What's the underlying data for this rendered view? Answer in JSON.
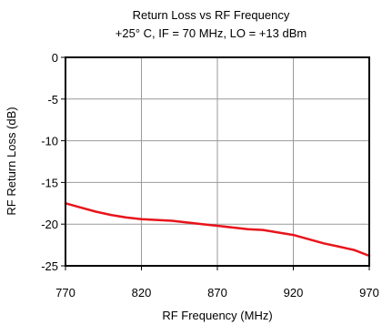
{
  "chart_data": {
    "type": "line",
    "title": "Return Loss vs RF Frequency",
    "subtitle": "+25° C, IF = 70 MHz, LO = +13 dBm",
    "xlabel": "RF Frequency (MHz)",
    "ylabel": "RF Return Loss (dB)",
    "xlim": [
      770,
      970
    ],
    "ylim": [
      -25,
      0
    ],
    "x_ticks": [
      770,
      820,
      870,
      920,
      970
    ],
    "y_ticks": [
      0,
      -5,
      -10,
      -15,
      -20,
      -25
    ],
    "grid": true,
    "legend": "none",
    "series": [
      {
        "color": "#e8141b",
        "x": [
          770,
          780,
          790,
          800,
          810,
          820,
          830,
          840,
          850,
          860,
          870,
          880,
          890,
          900,
          910,
          920,
          930,
          940,
          950,
          960,
          970
        ],
        "y": [
          -17.5,
          -18.0,
          -18.5,
          -18.9,
          -19.2,
          -19.4,
          -19.5,
          -19.6,
          -19.8,
          -20.0,
          -20.2,
          -20.4,
          -20.6,
          -20.7,
          -21.0,
          -21.3,
          -21.8,
          -22.3,
          -22.7,
          -23.1,
          -23.8
        ]
      }
    ]
  }
}
